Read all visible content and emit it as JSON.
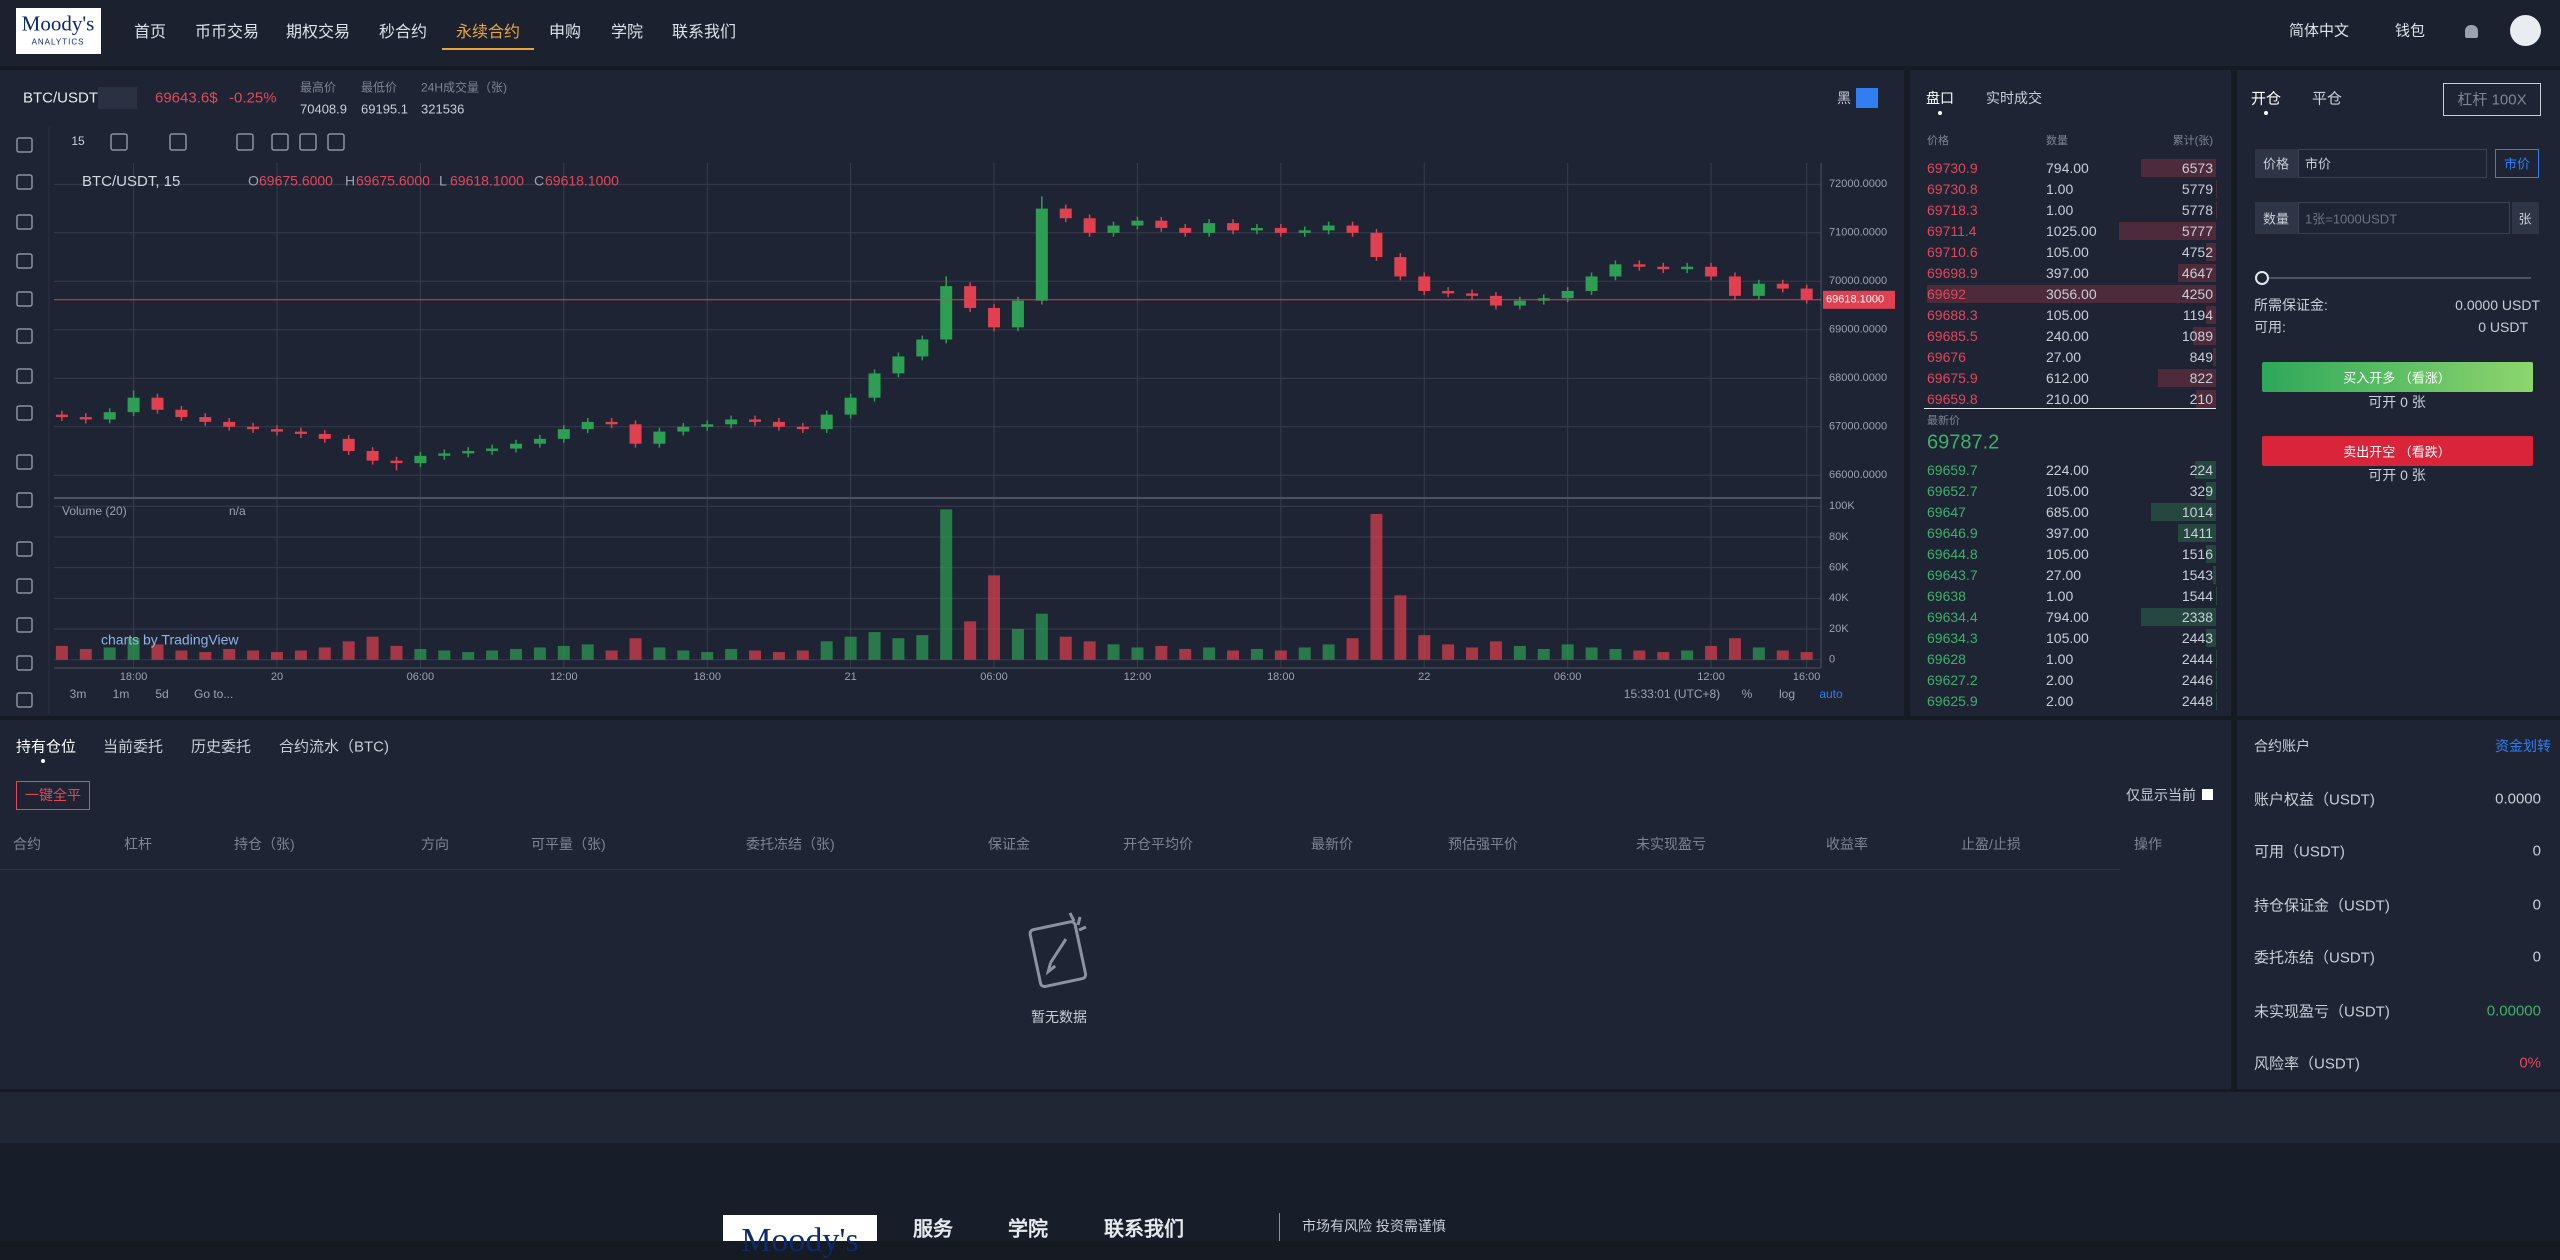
{
  "nav": {
    "logo": [
      "Moody's",
      "ANALYTICS"
    ],
    "items": [
      "首页",
      "币币交易",
      "期权交易",
      "秒合约",
      "永续合约",
      "申购",
      "学院",
      "联系我们"
    ],
    "active": 4,
    "language": "简体中文",
    "wallet": "钱包"
  },
  "ticker": {
    "pair": "BTC/USDT",
    "price": "69643.6$",
    "change": "-0.25%",
    "stats": [
      {
        "label": "最高价",
        "value": "70408.9"
      },
      {
        "label": "最低价",
        "value": "69195.1"
      },
      {
        "label": "24H成交量（张)",
        "value": "321536"
      }
    ],
    "theme": "黑"
  },
  "price_chart": {
    "type": "candlestick",
    "interval": "15",
    "symbol": "BTC/USDT, 15",
    "legend": [
      {
        "key": "O",
        "value": "69675.6000"
      },
      {
        "key": "H",
        "value": "69675.6000"
      },
      {
        "key": "L",
        "value": "69618.1000"
      },
      {
        "key": "C",
        "value": "69618.1000"
      }
    ],
    "open": [
      67250,
      67200,
      67150,
      67300,
      67600,
      67350,
      67200,
      67100,
      67000,
      66950,
      66900,
      66850,
      66750,
      66500,
      66300,
      66250,
      66400,
      66450,
      66500,
      66550,
      66650,
      66750,
      66950,
      67100,
      67050,
      66650,
      66900,
      67000,
      67050,
      67150,
      67100,
      67000,
      66950,
      67250,
      67600,
      68100,
      68450,
      68800,
      69900,
      69450,
      69050,
      69600,
      71500,
      71300,
      71000,
      71150,
      71250,
      71100,
      71000,
      71200,
      71050,
      71100,
      71000,
      71050,
      71150,
      71000,
      70500,
      70100,
      69800,
      69750,
      69700,
      69500,
      69600,
      69650,
      69800,
      70100,
      70350,
      70300,
      70250,
      70300,
      70100,
      69700,
      69950,
      69850
    ],
    "high": [
      67330,
      67280,
      67380,
      67750,
      67680,
      67430,
      67280,
      67180,
      67080,
      67030,
      66980,
      66930,
      66830,
      66580,
      66380,
      66480,
      66530,
      66580,
      66630,
      66730,
      66830,
      67030,
      67180,
      67180,
      67130,
      66980,
      67080,
      67130,
      67230,
      67230,
      67180,
      67080,
      67330,
      67680,
      68180,
      68530,
      68880,
      70100,
      69980,
      69530,
      69680,
      71750,
      71580,
      71380,
      71230,
      71330,
      71330,
      71180,
      71280,
      71280,
      71180,
      71180,
      71130,
      71230,
      71230,
      71080,
      70580,
      70180,
      69880,
      69830,
      69780,
      69680,
      69730,
      69880,
      70180,
      70430,
      70430,
      70380,
      70380,
      70380,
      70180,
      70030,
      70030,
      69930
    ],
    "low": [
      67120,
      67070,
      67070,
      67220,
      67270,
      67120,
      67020,
      66920,
      66870,
      66820,
      66770,
      66670,
      66420,
      66220,
      66100,
      66170,
      66320,
      66370,
      66420,
      66470,
      66570,
      66670,
      66870,
      66970,
      66570,
      66570,
      66820,
      66920,
      66970,
      67020,
      66920,
      66870,
      66870,
      67170,
      67520,
      68020,
      68370,
      68720,
      69370,
      68970,
      68970,
      69520,
      71220,
      70920,
      70920,
      71070,
      71020,
      70920,
      70920,
      70970,
      70970,
      70920,
      70920,
      70970,
      70920,
      70420,
      70020,
      69720,
      69670,
      69620,
      69420,
      69420,
      69520,
      69570,
      69720,
      70020,
      70220,
      70170,
      70170,
      70020,
      69620,
      69620,
      69770,
      69540
    ],
    "close": [
      67200,
      67150,
      67300,
      67600,
      67350,
      67200,
      67100,
      67000,
      66950,
      66900,
      66850,
      66750,
      66500,
      66300,
      66250,
      66400,
      66450,
      66500,
      66550,
      66650,
      66750,
      66950,
      67100,
      67050,
      66650,
      66900,
      67000,
      67050,
      67150,
      67100,
      67000,
      66950,
      67250,
      67600,
      68100,
      68450,
      68800,
      69900,
      69450,
      69050,
      69600,
      71500,
      71300,
      71000,
      71150,
      71250,
      71100,
      71000,
      71200,
      71050,
      71100,
      71000,
      71050,
      71150,
      71000,
      70500,
      70100,
      69800,
      69750,
      69700,
      69500,
      69600,
      69650,
      69800,
      70100,
      70350,
      70300,
      70250,
      70300,
      70100,
      69700,
      69950,
      69850,
      69620
    ],
    "volume": [
      9000,
      7000,
      8000,
      14000,
      10000,
      6000,
      5000,
      7000,
      6000,
      5000,
      6000,
      8000,
      12000,
      15000,
      9000,
      7000,
      6000,
      5000,
      6000,
      7000,
      8000,
      9000,
      10000,
      6000,
      14000,
      8000,
      6000,
      5000,
      7000,
      6000,
      5000,
      6000,
      12000,
      15000,
      18000,
      14000,
      16000,
      98000,
      25000,
      55000,
      20000,
      30000,
      15000,
      12000,
      10000,
      8000,
      9000,
      7000,
      8000,
      6000,
      7000,
      6000,
      8000,
      10000,
      14000,
      95000,
      42000,
      16000,
      10000,
      8000,
      12000,
      9000,
      7000,
      10000,
      8000,
      7000,
      6000,
      5000,
      6000,
      9000,
      14000,
      8000,
      6000,
      5000
    ],
    "up_color": "#2f9e55",
    "down_color": "#e0404f",
    "xlim": [
      -0.33,
      73.6
    ],
    "xticks": [
      {
        "value": 3,
        "label": "18:00"
      },
      {
        "value": 9,
        "label": "20"
      },
      {
        "value": 15,
        "label": "06:00"
      },
      {
        "value": 21,
        "label": "12:00"
      },
      {
        "value": 27,
        "label": "18:00"
      },
      {
        "value": 33,
        "label": "21"
      },
      {
        "value": 39,
        "label": "06:00"
      },
      {
        "value": 45,
        "label": "12:00"
      },
      {
        "value": 51,
        "label": "18:00"
      },
      {
        "value": 57,
        "label": "22"
      },
      {
        "value": 63,
        "label": "06:00"
      },
      {
        "value": 69,
        "label": "12:00"
      },
      {
        "value": 73,
        "label": "16:00"
      }
    ],
    "ylim": [
      65530,
      72440
    ],
    "yticks": [
      {
        "value": 66000,
        "label": "66000.0000"
      },
      {
        "value": 67000,
        "label": "67000.0000"
      },
      {
        "value": 68000,
        "label": "68000.0000"
      },
      {
        "value": 69000,
        "label": "69000.0000"
      },
      {
        "value": 70000,
        "label": "70000.0000"
      },
      {
        "value": 71000,
        "label": "71000.0000"
      },
      {
        "value": 72000,
        "label": "72000.0000"
      }
    ],
    "last_price": {
      "value": 69618.1,
      "label": "69618.1000"
    },
    "volume_ylim": [
      -5400,
      105400
    ],
    "volume_ticks": [
      0,
      {
        "value": 20000,
        "label": "20K"
      },
      {
        "value": 40000,
        "label": "40K"
      },
      {
        "value": 60000,
        "label": "60K"
      },
      {
        "value": 80000,
        "label": "80K"
      },
      {
        "value": 100000,
        "label": "100K"
      }
    ],
    "volume_label": "Volume (20)",
    "volume_value": "n/a",
    "watermark": "charts by TradingView",
    "range_buttons": [
      "3m",
      "1m",
      "5d"
    ],
    "goto": "Go to...",
    "clock": "15:33:01 (UTC+8)",
    "options": [
      "%",
      "log",
      "auto"
    ]
  },
  "orderbook": {
    "tabs": [
      "盘口",
      "实时成交"
    ],
    "headers": [
      "价格",
      "数量",
      "累计(张)"
    ],
    "asks": [
      [
        69730.9,
        "794.00",
        6573
      ],
      [
        69730.8,
        "1.00",
        5779
      ],
      [
        69718.3,
        "1.00",
        5778
      ],
      [
        69711.4,
        "1025.00",
        5777
      ],
      [
        69710.6,
        "105.00",
        4752
      ],
      [
        69698.9,
        "397.00",
        4647
      ],
      [
        69692,
        "3056.00",
        4250
      ],
      [
        69688.3,
        "105.00",
        1194
      ],
      [
        69685.5,
        "240.00",
        1089
      ],
      [
        69676,
        "27.00",
        849
      ],
      [
        69675.9,
        "612.00",
        822
      ],
      [
        69659.8,
        "210.00",
        210
      ]
    ],
    "last_label": "最新价",
    "last_price": "69787.2",
    "bids": [
      [
        69659.7,
        "224.00",
        224
      ],
      [
        69652.7,
        "105.00",
        329
      ],
      [
        69647,
        "685.00",
        1014
      ],
      [
        69646.9,
        "397.00",
        1411
      ],
      [
        69644.8,
        "105.00",
        1516
      ],
      [
        69643.7,
        "27.00",
        1543
      ],
      [
        69638,
        "1.00",
        1544
      ],
      [
        69634.4,
        "794.00",
        2338
      ],
      [
        69634.3,
        "105.00",
        2443
      ],
      [
        69628,
        "1.00",
        2444
      ],
      [
        69627.2,
        "2.00",
        2446
      ],
      [
        69625.9,
        "2.00",
        2448
      ]
    ]
  },
  "trade": {
    "tabs": [
      "开仓",
      "平仓"
    ],
    "leverage": "杠杆 100X",
    "price_label": "价格",
    "price_value": "市价",
    "price_button": "市价",
    "qty_label": "数量",
    "qty_placeholder": "1张=1000USDT",
    "qty_unit": "张",
    "margin_label": "所需保证金:",
    "margin_value": "0.0000 USDT",
    "available_label": "可用:",
    "available_value": "0 USDT",
    "buy": "买入开多 （看涨）",
    "buy_capacity": "可开 0 张",
    "sell": "卖出开空 （看跌）",
    "sell_capacity": "可开 0 张"
  },
  "positions": {
    "tabs": [
      "持有仓位",
      "当前委托",
      "历史委托",
      "合约流水（BTC)"
    ],
    "active": 0,
    "close_all": "一键全平",
    "filter": "仅显示当前",
    "columns": [
      "合约",
      "杠杆",
      "持仓（张)",
      "方向",
      "可平量（张)",
      "委托冻结（张)",
      "保证金",
      "开仓平均价",
      "最新价",
      "预估强平价",
      "未实现盈亏",
      "收益率",
      "止盈/止损",
      "操作"
    ],
    "empty": "暂无数据"
  },
  "account": {
    "title": "合约账户",
    "transfer": "资金划转",
    "rows": [
      {
        "label": "账户权益（USDT)",
        "value": "0.0000"
      },
      {
        "label": "可用（USDT)",
        "value": "0"
      },
      {
        "label": "持仓保证金（USDT)",
        "value": "0"
      },
      {
        "label": "委托冻结（USDT)",
        "value": "0"
      },
      {
        "label": "未实现盈亏（USDT)",
        "value": "0.00000",
        "color": "#3fb068"
      },
      {
        "label": "风险率（USDT)",
        "value": "0%",
        "color": "#e2475b"
      }
    ]
  },
  "footer": {
    "links": [
      "服务",
      "学院",
      "联系我们"
    ],
    "notice": "市场有风险 投资需谨慎"
  }
}
